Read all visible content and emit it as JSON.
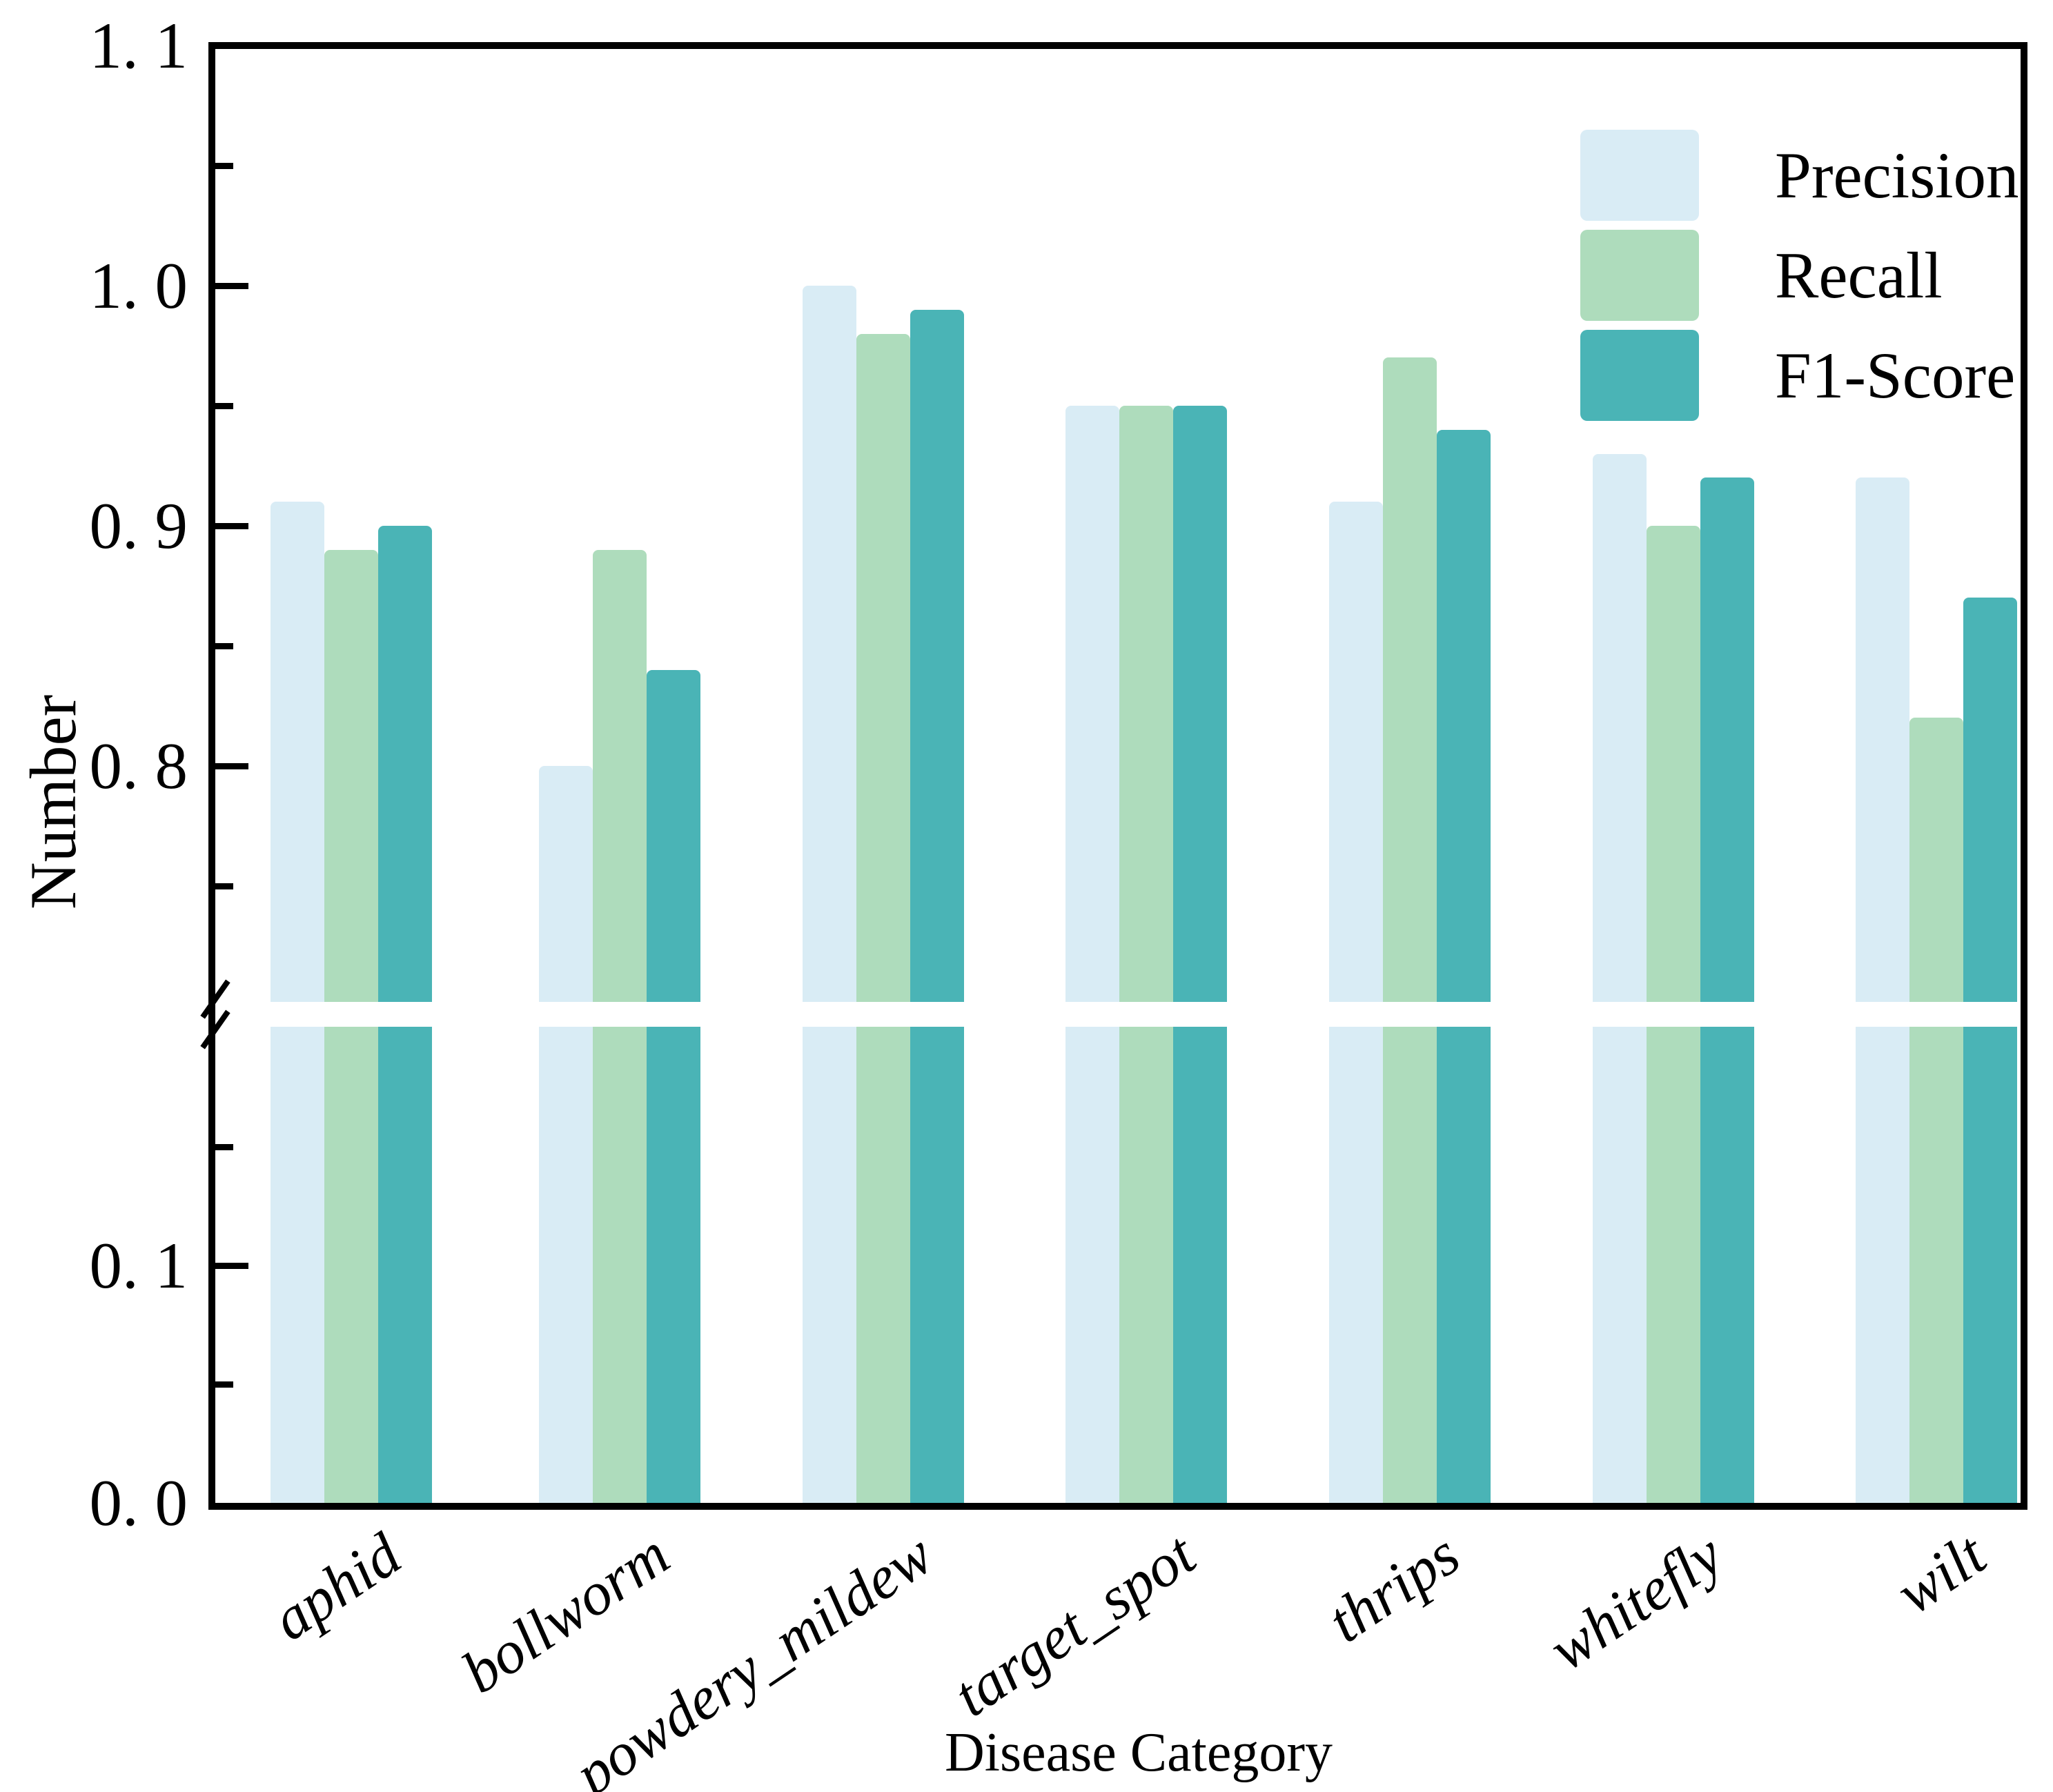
{
  "chart_data": {
    "type": "bar",
    "title": "",
    "xlabel": "Disease Category",
    "ylabel": "Number",
    "categories": [
      "aphid",
      "bollworm",
      "powdery_mildew",
      "target_spot",
      "thrips",
      "whitefly",
      "wilt"
    ],
    "series": [
      {
        "name": "Precision",
        "color": "#d9ecf5",
        "values": [
          0.91,
          0.8,
          1.0,
          0.95,
          0.91,
          0.93,
          0.92
        ]
      },
      {
        "name": "Recall",
        "color": "#aedcbc",
        "values": [
          0.89,
          0.89,
          0.98,
          0.95,
          0.97,
          0.9,
          0.82
        ]
      },
      {
        "name": "F1-Score",
        "color": "#4ab4b6",
        "values": [
          0.9,
          0.84,
          0.99,
          0.95,
          0.94,
          0.92,
          0.87
        ]
      }
    ],
    "legend_position": "upper right",
    "grid": false,
    "background": "#ffffff",
    "axis_color": "#000000",
    "broken_axis": {
      "top_panel_range": [
        0.7,
        1.1
      ],
      "bottom_panel_range": [
        0.0,
        0.2
      ],
      "top_ticks": [
        {
          "value": 1.1,
          "label": "1. 1"
        },
        {
          "value": 1.05
        },
        {
          "value": 1.0,
          "label": "1. 0"
        },
        {
          "value": 0.95
        },
        {
          "value": 0.9,
          "label": "0. 9"
        },
        {
          "value": 0.85
        },
        {
          "value": 0.8,
          "label": "0. 8"
        },
        {
          "value": 0.75
        }
      ],
      "bottom_ticks": [
        {
          "value": 0.15
        },
        {
          "value": 0.1,
          "label": "0. 1"
        },
        {
          "value": 0.05
        },
        {
          "value": 0.0,
          "label": "0. 0"
        }
      ]
    }
  }
}
